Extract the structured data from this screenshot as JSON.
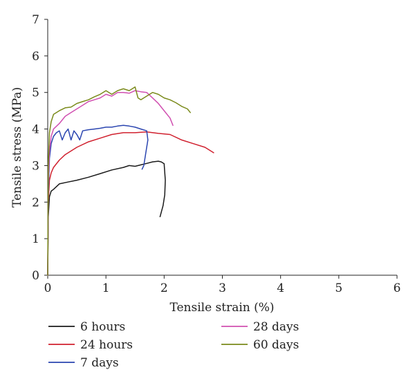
{
  "chart_data": {
    "type": "line",
    "xlabel": "Tensile strain (%)",
    "ylabel": "Tensile stress (MPa)",
    "xlim": [
      0,
      6
    ],
    "ylim": [
      0,
      7
    ],
    "xticks": [
      "0",
      "1",
      "2",
      "3",
      "4",
      "5",
      "6"
    ],
    "yticks": [
      "0",
      "1",
      "2",
      "3",
      "4",
      "5",
      "6",
      "7"
    ],
    "grid": false,
    "legend_position": "bottom",
    "series": [
      {
        "name": "6 hours",
        "color": "#1a1a1a",
        "x": [
          0,
          0.01,
          0.03,
          0.06,
          0.1,
          0.2,
          0.35,
          0.5,
          0.7,
          0.9,
          1.1,
          1.3,
          1.4,
          1.5,
          1.6,
          1.7,
          1.8,
          1.9,
          1.95,
          2.0,
          2.02,
          2.01,
          1.98,
          1.93
        ],
        "y": [
          0,
          1.6,
          2.15,
          2.3,
          2.35,
          2.5,
          2.55,
          2.6,
          2.68,
          2.78,
          2.88,
          2.95,
          3.0,
          2.98,
          3.02,
          3.06,
          3.1,
          3.12,
          3.1,
          3.05,
          2.6,
          2.2,
          1.9,
          1.6
        ]
      },
      {
        "name": "24 hours",
        "color": "#d0202e",
        "x": [
          0,
          0.01,
          0.03,
          0.06,
          0.1,
          0.2,
          0.3,
          0.5,
          0.7,
          0.9,
          1.1,
          1.3,
          1.5,
          1.7,
          1.9,
          2.1,
          2.3,
          2.5,
          2.7,
          2.85
        ],
        "y": [
          0,
          2.0,
          2.6,
          2.8,
          2.95,
          3.15,
          3.3,
          3.5,
          3.65,
          3.75,
          3.85,
          3.9,
          3.9,
          3.92,
          3.88,
          3.85,
          3.7,
          3.6,
          3.5,
          3.35
        ]
      },
      {
        "name": "7 days",
        "color": "#2a45b0",
        "x": [
          0,
          0.01,
          0.03,
          0.06,
          0.1,
          0.15,
          0.2,
          0.25,
          0.3,
          0.35,
          0.4,
          0.45,
          0.5,
          0.55,
          0.6,
          0.7,
          0.8,
          0.9,
          1.0,
          1.1,
          1.2,
          1.3,
          1.4,
          1.5,
          1.6,
          1.7,
          1.72,
          1.68,
          1.65,
          1.62
        ],
        "y": [
          0,
          2.2,
          3.2,
          3.6,
          3.8,
          3.9,
          3.95,
          3.7,
          3.9,
          4.0,
          3.7,
          3.95,
          3.85,
          3.7,
          3.95,
          3.98,
          4.0,
          4.02,
          4.05,
          4.05,
          4.08,
          4.1,
          4.08,
          4.05,
          4.0,
          3.95,
          3.7,
          3.3,
          3.0,
          2.9
        ]
      },
      {
        "name": "28 days",
        "color": "#d04fb0",
        "x": [
          0,
          0.01,
          0.03,
          0.06,
          0.1,
          0.2,
          0.3,
          0.4,
          0.5,
          0.6,
          0.7,
          0.8,
          0.9,
          1.0,
          1.1,
          1.2,
          1.3,
          1.4,
          1.5,
          1.6,
          1.7,
          1.8,
          1.9,
          2.0,
          2.1,
          2.15
        ],
        "y": [
          0,
          2.5,
          3.4,
          3.8,
          4.0,
          4.15,
          4.35,
          4.45,
          4.55,
          4.65,
          4.75,
          4.8,
          4.85,
          4.95,
          4.9,
          5.0,
          5.0,
          4.98,
          5.05,
          5.02,
          5.0,
          4.85,
          4.7,
          4.5,
          4.3,
          4.1
        ]
      },
      {
        "name": "60 days",
        "color": "#7a8a1a",
        "x": [
          0,
          0.01,
          0.03,
          0.06,
          0.1,
          0.2,
          0.3,
          0.4,
          0.5,
          0.6,
          0.7,
          0.8,
          0.9,
          1.0,
          1.1,
          1.2,
          1.3,
          1.4,
          1.5,
          1.55,
          1.6,
          1.7,
          1.8,
          1.9,
          2.0,
          2.1,
          2.2,
          2.3,
          2.4,
          2.45
        ],
        "y": [
          0,
          3.0,
          3.9,
          4.2,
          4.4,
          4.5,
          4.58,
          4.6,
          4.7,
          4.75,
          4.8,
          4.88,
          4.95,
          5.05,
          4.95,
          5.05,
          5.1,
          5.05,
          5.15,
          4.85,
          4.8,
          4.9,
          5.0,
          4.95,
          4.85,
          4.8,
          4.72,
          4.62,
          4.55,
          4.45
        ]
      }
    ]
  }
}
